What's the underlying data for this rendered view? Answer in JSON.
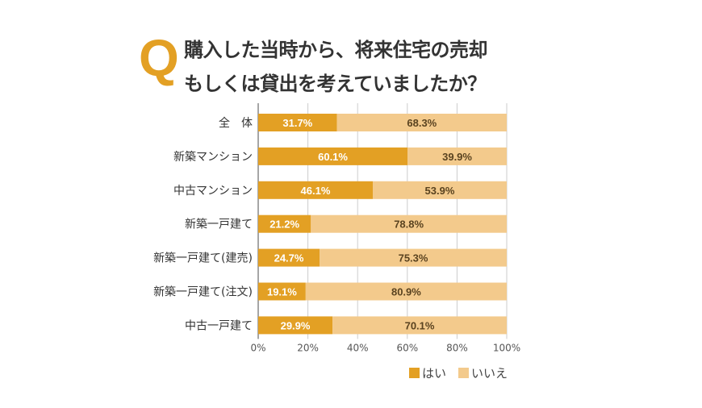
{
  "title": {
    "q": "Q",
    "line1": "購入した当時から、将来住宅の売却",
    "line2": "もしくは貸出を考えていましたか？"
  },
  "chart_data": {
    "type": "bar",
    "orientation": "horizontal",
    "stacked": true,
    "categories": [
      "全　体",
      "新築マンション",
      "中古マンション",
      "新築一戸建て",
      "新築一戸建て(建売)",
      "新築一戸建て(注文)",
      "中古一戸建て"
    ],
    "series": [
      {
        "name": "はい",
        "color": "#e3a024",
        "values": [
          31.7,
          60.1,
          46.1,
          21.2,
          24.7,
          19.1,
          29.9
        ]
      },
      {
        "name": "いいえ",
        "color": "#f3ca8c",
        "values": [
          68.3,
          39.9,
          53.9,
          78.8,
          75.3,
          80.9,
          70.1
        ]
      }
    ],
    "xlim": [
      0,
      100
    ],
    "xticks": [
      "0%",
      "20%",
      "40%",
      "60%",
      "80%",
      "100%"
    ],
    "grid": true,
    "legend": "bottom-right"
  }
}
